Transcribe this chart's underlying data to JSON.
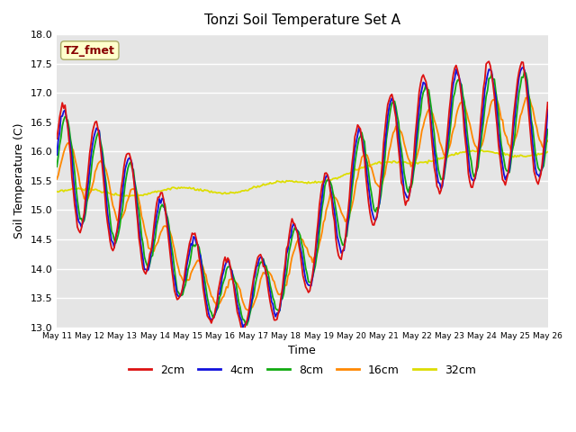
{
  "title": "Tonzi Soil Temperature Set A",
  "xlabel": "Time",
  "ylabel": "Soil Temperature (C)",
  "ylim": [
    13.0,
    18.0
  ],
  "yticks": [
    13.0,
    13.5,
    14.0,
    14.5,
    15.0,
    15.5,
    16.0,
    16.5,
    17.0,
    17.5,
    18.0
  ],
  "xtick_labels": [
    "May 11",
    "May 12",
    "May 13",
    "May 14",
    "May 15",
    "May 16",
    "May 17",
    "May 18",
    "May 19",
    "May 20",
    "May 21",
    "May 22",
    "May 23",
    "May 24",
    "May 25",
    "May 26"
  ],
  "line_colors": {
    "2cm": "#dd1111",
    "4cm": "#1111dd",
    "8cm": "#11aa11",
    "16cm": "#ff8800",
    "32cm": "#dddd00"
  },
  "annotation_text": "TZ_fmet",
  "annotation_color": "#880000",
  "annotation_bg": "#ffffcc",
  "annotation_edge": "#aaaa66",
  "background_color": "#e5e5e5",
  "legend_items": [
    "2cm",
    "4cm",
    "8cm",
    "16cm",
    "32cm"
  ]
}
